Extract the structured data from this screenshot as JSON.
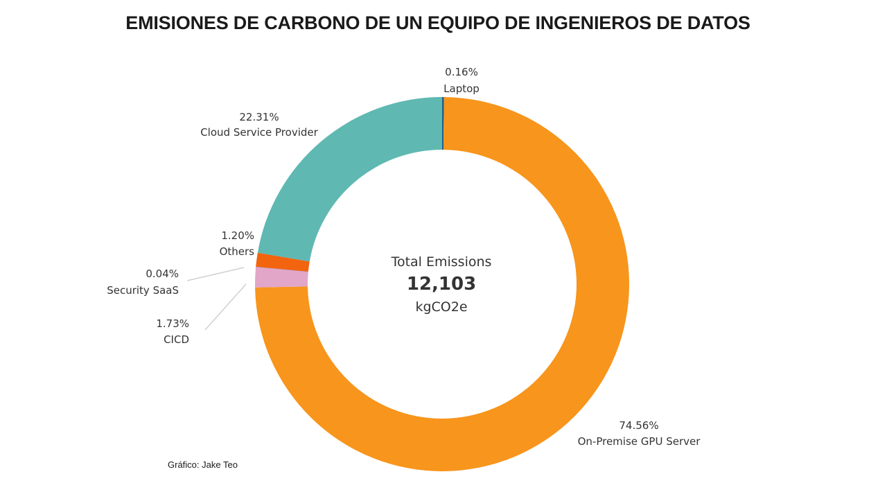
{
  "title": "EMISIONES DE CARBONO DE UN EQUIPO DE INGENIEROS DE DATOS",
  "credit": "Gráfico: Jake Teo",
  "chart_data": {
    "type": "pie",
    "donut": true,
    "title": "EMISIONES DE CARBONO DE UN EQUIPO DE INGENIEROS DE DATOS",
    "center": {
      "heading": "Total Emissions",
      "value": "12,103",
      "unit": "kgCO2e"
    },
    "slices": [
      {
        "name": "Laptop",
        "percent": 0.16,
        "label": "0.16%",
        "color": "#1f5f8b"
      },
      {
        "name": "On-Premise GPU Server",
        "percent": 74.56,
        "label": "74.56%",
        "color": "#f7951c"
      },
      {
        "name": "CICD",
        "percent": 1.73,
        "label": "1.73%",
        "color": "#e2a6c9"
      },
      {
        "name": "Security SaaS",
        "percent": 0.04,
        "label": "0.04%",
        "color": "#b07aa1"
      },
      {
        "name": "Others",
        "percent": 1.2,
        "label": "1.20%",
        "color": "#f2640e"
      },
      {
        "name": "Cloud Service Provider",
        "percent": 22.31,
        "label": "22.31%",
        "color": "#5fb8b2"
      }
    ]
  }
}
